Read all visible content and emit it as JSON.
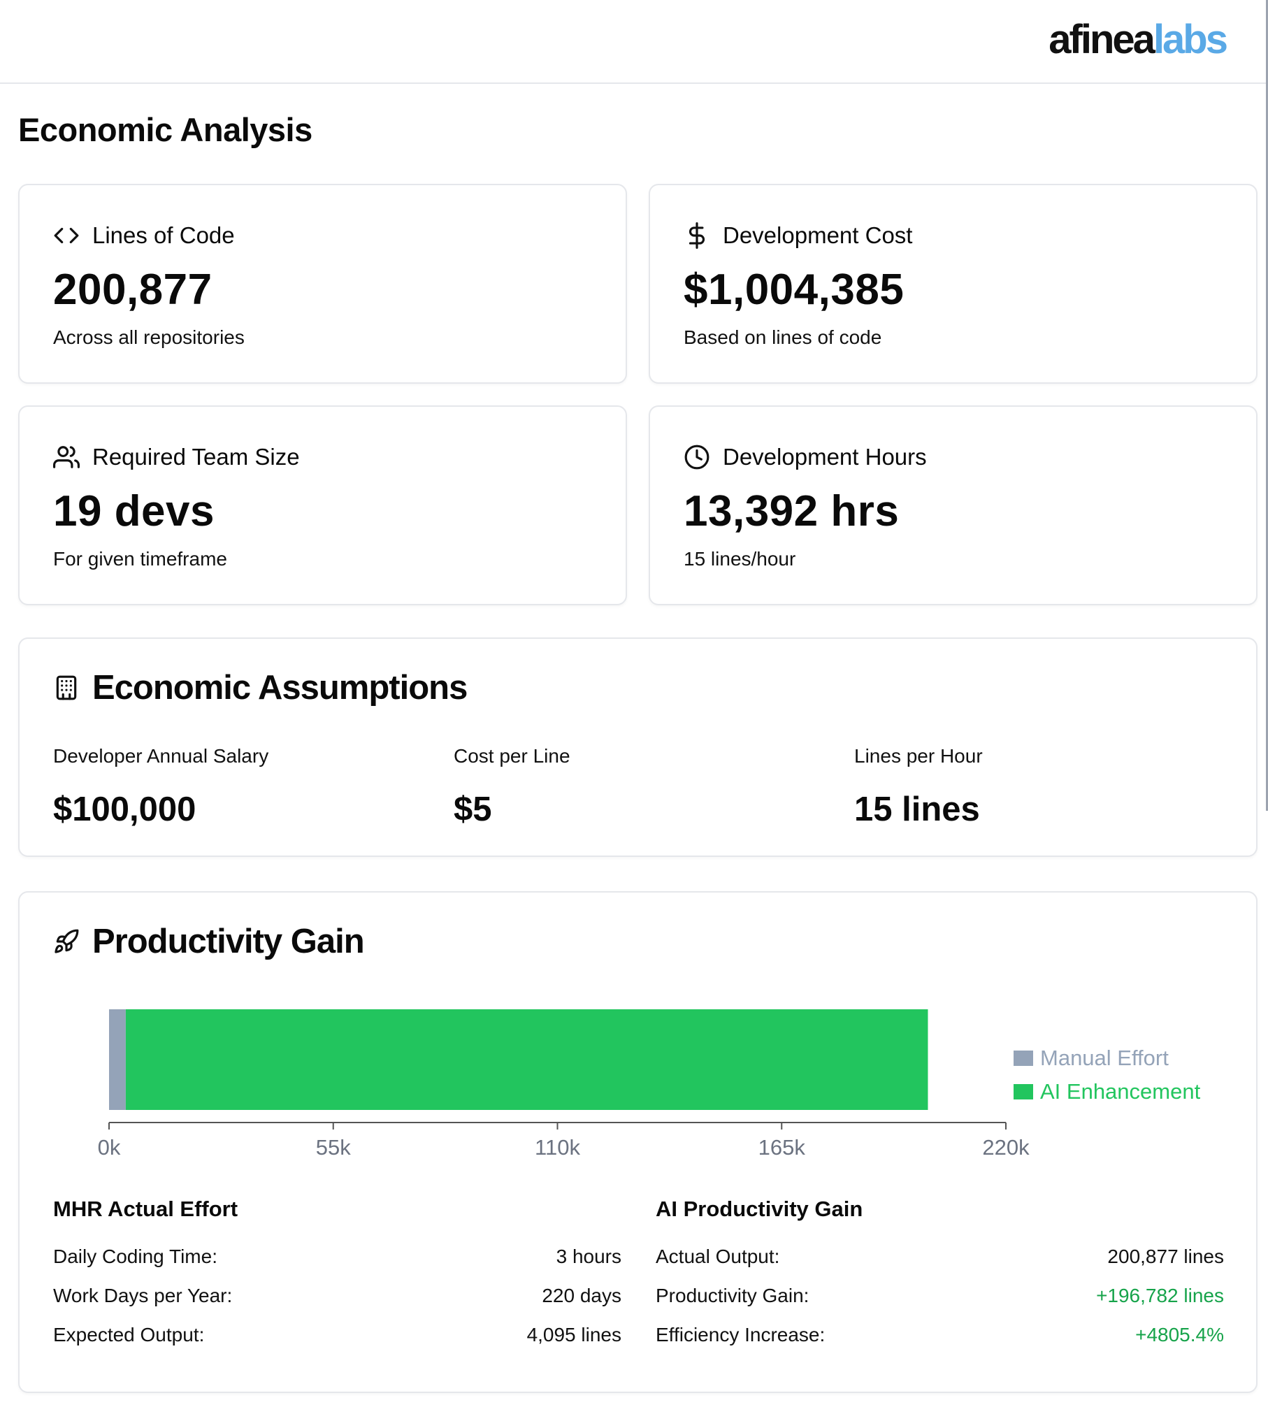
{
  "brand": {
    "logo_dark": "afinea",
    "logo_light": "labs",
    "light_color": "#5aa9e6"
  },
  "page": {
    "title": "Economic Analysis"
  },
  "stats": [
    {
      "icon": "code-icon",
      "label": "Lines of Code",
      "value": "200,877",
      "sub": "Across all repositories"
    },
    {
      "icon": "dollar-icon",
      "label": "Development Cost",
      "value": "$1,004,385",
      "sub": "Based on lines of code"
    },
    {
      "icon": "users-icon",
      "label": "Required Team Size",
      "value": "19 devs",
      "sub": "For given timeframe"
    },
    {
      "icon": "clock-icon",
      "label": "Development Hours",
      "value": "13,392 hrs",
      "sub": "15 lines/hour"
    }
  ],
  "assumptions": {
    "title": "Economic Assumptions",
    "icon": "building-icon",
    "items": [
      {
        "label": "Developer Annual Salary",
        "value": "$100,000"
      },
      {
        "label": "Cost per Line",
        "value": "$5"
      },
      {
        "label": "Lines per Hour",
        "value": "15 lines"
      }
    ]
  },
  "productivity": {
    "title": "Productivity Gain",
    "icon": "rocket-icon",
    "chart_data": {
      "type": "bar",
      "orientation": "horizontal",
      "stacked": true,
      "series": [
        {
          "name": "Manual Effort",
          "values": [
            4095
          ],
          "color": "#94a3b8"
        },
        {
          "name": "AI Enhancement",
          "values": [
            196782
          ],
          "color": "#22c55e"
        }
      ],
      "xlim": [
        0,
        220000
      ],
      "xticks": [
        "0k",
        "55k",
        "110k",
        "165k",
        "220k"
      ],
      "xtick_values": [
        0,
        55000,
        110000,
        165000,
        220000
      ],
      "legend_position": "right",
      "grid": false
    },
    "manual": {
      "title": "MHR Actual Effort",
      "rows": [
        {
          "label": "Daily Coding Time:",
          "value": "3 hours"
        },
        {
          "label": "Work Days per Year:",
          "value": "220 days"
        },
        {
          "label": "Expected Output:",
          "value": "4,095 lines"
        }
      ]
    },
    "ai": {
      "title": "AI Productivity Gain",
      "rows": [
        {
          "label": "Actual Output:",
          "value": "200,877 lines"
        },
        {
          "label": "Productivity Gain:",
          "value": "+196,782 lines"
        },
        {
          "label": "Efficiency Increase:",
          "value": "+4805.4%"
        }
      ]
    }
  }
}
